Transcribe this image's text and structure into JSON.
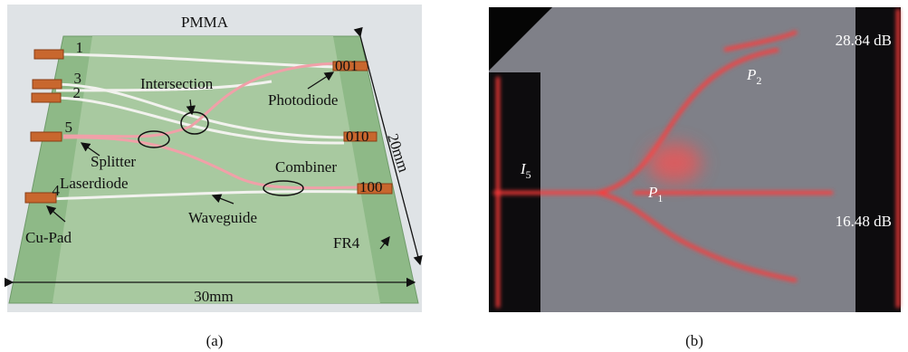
{
  "panel_a": {
    "pmma": "PMMA",
    "pads_left": [
      "1",
      "3",
      "2",
      "5",
      "4"
    ],
    "pads_right": [
      "001",
      "010",
      "100"
    ],
    "intersection": "Intersection",
    "photodiode": "Photodiode",
    "splitter": "Splitter",
    "laserdiode": "Laserdiode",
    "combiner": "Combiner",
    "waveguide": "Waveguide",
    "cu_pad": "Cu-Pad",
    "fr4": "FR4",
    "dim_depth": "20mm",
    "dim_width": "30mm",
    "caption": "(a)"
  },
  "panel_b": {
    "top_db": "28.84 dB",
    "bottom_db": "16.48 dB",
    "p2": {
      "symbol": "P",
      "sub": "2"
    },
    "i5": {
      "symbol": "I",
      "sub": "5"
    },
    "p1": {
      "symbol": "P",
      "sub": "1"
    },
    "caption": "(b)"
  }
}
